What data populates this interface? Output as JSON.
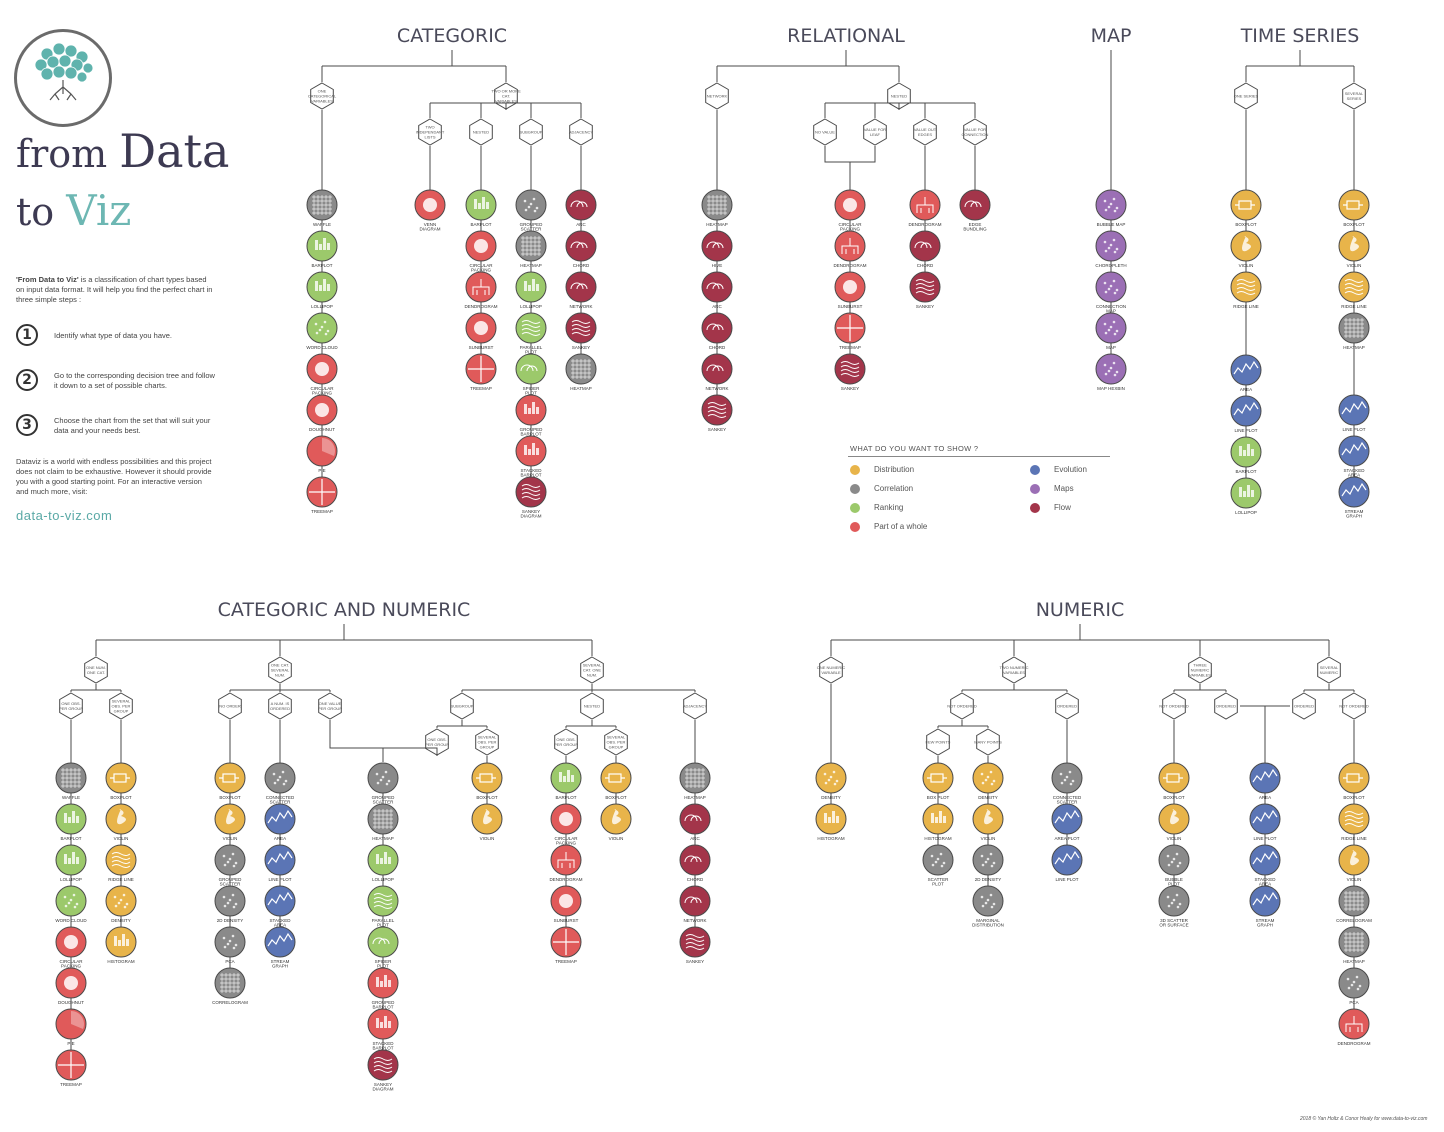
{
  "branding": {
    "logo_word_from": "from",
    "logo_word_data": "Data",
    "logo_word_to": "to",
    "logo_word_viz": "Viz",
    "intro_bold": "'From Data to Viz'",
    "intro_rest": " is a classification of chart types based on input data format. It will help you find the perfect chart in three simple steps :",
    "steps": [
      {
        "num": "1",
        "text": "Identify what type of data you have."
      },
      {
        "num": "2",
        "text": "Go to the corresponding decision tree and follow it down to a set of possible charts."
      },
      {
        "num": "3",
        "text": "Choose the chart from the set that will suit your data and your needs best."
      }
    ],
    "outro": "Dataviz is a world with endless possibilities and this project does not claim to be exhaustive. However it should provide you with a good starting point. For an interactive version and much more, visit:",
    "site": "data-to-viz.com",
    "credit": "2018 © Yan Holtz & Conor Healy for www.data-to-viz.com"
  },
  "legend": {
    "title": "WHAT DO YOU WANT TO SHOW ?",
    "items": [
      {
        "label": "Distribution",
        "color": "#e8b44a"
      },
      {
        "label": "Correlation",
        "color": "#8a8a8a"
      },
      {
        "label": "Ranking",
        "color": "#9cc96b"
      },
      {
        "label": "Part of a whole",
        "color": "#e05a5a"
      },
      {
        "label": "Evolution",
        "color": "#5b75b5"
      },
      {
        "label": "Maps",
        "color": "#9b6fb5"
      },
      {
        "label": "Flow",
        "color": "#a3354a"
      }
    ]
  },
  "colors": {
    "Distribution": "#e8b44a",
    "Correlation": "#8a8a8a",
    "Ranking": "#9cc96b",
    "Part": "#e05a5a",
    "Evolution": "#5b75b5",
    "Maps": "#9b6fb5",
    "Flow": "#a3354a"
  },
  "sections": [
    {
      "title": "CATEGORIC",
      "nodes": [
        "ONE CATEGORICAL VARIABLES",
        "TWO OR MORE CAT. VARIABLES",
        "TWO INDEPENDANT LISTS",
        "NESTED",
        "SUBGROUP",
        "ADJACENCY"
      ],
      "columns": [
        [
          "WAFFLE",
          "BARPLOT",
          "LOLLIPOP",
          "WORD CLOUD",
          "CIRCULAR PACKING",
          "DOUGHNUT",
          "PIE",
          "TREEMAP"
        ],
        [
          "VENN DIAGRAM"
        ],
        [
          "BARPLOT",
          "CIRCULAR PACKING",
          "DENDROGRAM",
          "SUNBURST",
          "TREEMAP"
        ],
        [
          "GROUPED SCATTER",
          "HEATMAP",
          "LOLLIPOP",
          "PARALLEL PLOT",
          "SPIDER PLOT",
          "GROUPED BARPLOT",
          "STACKED BARPLOT",
          "SANKEY DIAGRAM"
        ],
        [
          "ARC",
          "CHORD",
          "NETWORK",
          "SANKEY",
          "HEATMAP"
        ]
      ]
    },
    {
      "title": "RELATIONAL",
      "nodes": [
        "NETWORK",
        "NESTED",
        "NO VALUE",
        "VALUE FOR LEAF",
        "VALUE OUT EDGES",
        "VALUE FOR CONNECTION"
      ],
      "columns": [
        [
          "HEATMAP",
          "HIVE",
          "ARC",
          "CHORD",
          "NETWORK",
          "SANKEY"
        ],
        [
          "CIRCULAR PACKING",
          "DENDROGRAM",
          "SUNBURST",
          "TREEMAP",
          "SANKEY"
        ],
        [
          "DENDROGRAM",
          "CHORD",
          "SANKEY"
        ],
        [
          "EDGE BUNDLING"
        ]
      ]
    },
    {
      "title": "MAP",
      "nodes": [],
      "columns": [
        [
          "BUBBLE MAP",
          "CHOROPLETH",
          "CONNECTION MAP",
          "MAP",
          "MAP HEXBIN"
        ]
      ]
    },
    {
      "title": "TIME SERIES",
      "nodes": [
        "ONE SERIES",
        "SEVERAL SERIES"
      ],
      "columns": [
        [
          "BOXPLOT",
          "VIOLIN",
          "RIDGE LINE",
          "AREA",
          "LINE PLOT",
          "BARPLOT",
          "LOLLIPOP"
        ],
        [
          "BOXPLOT",
          "VIOLIN",
          "RIDGE LINE",
          "HEATMAP",
          "LINE PLOT",
          "STACKED AREA",
          "STREAM GRAPH"
        ]
      ]
    },
    {
      "title": "CATEGORIC AND NUMERIC",
      "nodes": [
        "ONE NUM. ONE CAT.",
        "ONE OBS. PER GROUP",
        "SEVERAL OBS. PER GROUP",
        "ONE CAT. SEVERAL NUM.",
        "NO ORDER",
        "A NUM. IS ORDERED",
        "ONE VALUE PER GROUP",
        "SEVERAL CAT. ONE NUM.",
        "SUBGROUP",
        "ONE OBS. PER GROUP",
        "SEVERAL OBS. PER GROUP",
        "NESTED",
        "ONE OBS. PER GROUP",
        "SEVERAL OBS. PER GROUP",
        "ADJACENCY"
      ],
      "columns": [
        [
          "WAFFLE",
          "BARPLOT",
          "LOLLIPOP",
          "WORD CLOUD",
          "CIRCULAR PACKING",
          "DOUGHNUT",
          "PIE",
          "TREEMAP"
        ],
        [
          "BOXPLOT",
          "VIOLIN",
          "RIDGE LINE",
          "DENSITY",
          "HISTOGRAM"
        ],
        [
          "BOXPLOT",
          "VIOLIN",
          "GROUPED SCATTER",
          "2D DENSITY",
          "PCA",
          "CORRELOGRAM"
        ],
        [
          "CONNECTED SCATTER",
          "AREA",
          "LINE PLOT",
          "STACKED AREA",
          "STREAM GRAPH"
        ],
        [
          "GROUPED SCATTER",
          "HEATMAP",
          "LOLLIPOP",
          "PARALLEL PLOT",
          "SPIDER PLOT",
          "GROUPED BARPLOT",
          "STACKED BARPLOT",
          "SANKEY DIAGRAM"
        ],
        [
          "BOXPLOT",
          "VIOLIN"
        ],
        [
          "BARPLOT",
          "CIRCULAR PACKING",
          "DENDROGRAM",
          "SUNBURST",
          "TREEMAP"
        ],
        [
          "BOXPLOT",
          "VIOLIN"
        ],
        [
          "HEATMAP",
          "ARC",
          "CHORD",
          "NETWORK",
          "SANKEY"
        ]
      ]
    },
    {
      "title": "NUMERIC",
      "nodes": [
        "ONE NUMERIC VARIABLE",
        "TWO NUMERIC VARIABLES",
        "NOT ORDERED",
        "FEW POINTS",
        "MANY POINTS",
        "ORDERED",
        "THREE NUMERIC VARIABLES",
        "NOT ORDERED",
        "ORDERED",
        "SEVERAL NUMERIC",
        "ORDERED",
        "NOT ORDERED"
      ],
      "columns": [
        [
          "DENSITY",
          "HISTOGRAM"
        ],
        [
          "BOX PLOT",
          "HISTOGRAM",
          "SCATTER PLOT"
        ],
        [
          "DENSITY",
          "VIOLIN",
          "2D DENSITY",
          "MARGINAL DISTRIBUTION"
        ],
        [
          "CONNECTED SCATTER",
          "AREA PLOT",
          "LINE PLOT"
        ],
        [
          "BOXPLOT",
          "VIOLIN",
          "BUBBLE PLOT",
          "3D SCATTER OR SURFACE"
        ],
        [
          "AREA",
          "LINE PLOT",
          "STACKED AREA",
          "STREAM GRAPH"
        ],
        [
          "BOXPLOT",
          "RIDGE LINE",
          "VIOLIN",
          "CORRELOGRAM",
          "HEATMAP",
          "PCA",
          "DENDROGRAM"
        ]
      ]
    }
  ]
}
